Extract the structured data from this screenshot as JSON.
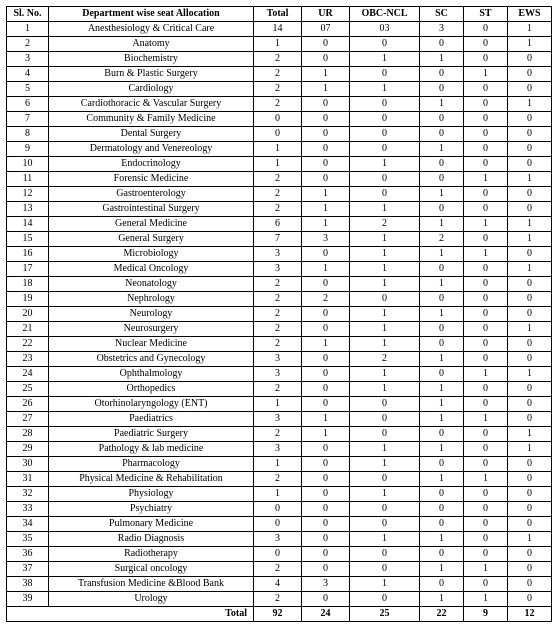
{
  "table": {
    "columns": [
      "Sl. No.",
      "Department wise seat Allocation",
      "Total",
      "UR",
      "OBC-NCL",
      "SC",
      "ST",
      "EWS"
    ],
    "rows": [
      [
        "1",
        "Anesthesiology & Critical Care",
        "14",
        "07",
        "03",
        "3",
        "0",
        "1"
      ],
      [
        "2",
        "Anatomy",
        "1",
        "0",
        "0",
        "0",
        "0",
        "1"
      ],
      [
        "3",
        "Biochemistry",
        "2",
        "0",
        "1",
        "1",
        "0",
        "0"
      ],
      [
        "4",
        "Burn & Plastic Surgery",
        "2",
        "1",
        "0",
        "0",
        "1",
        "0"
      ],
      [
        "5",
        "Cardiology",
        "2",
        "1",
        "1",
        "0",
        "0",
        "0"
      ],
      [
        "6",
        "Cardiothoracic & Vascular Surgery",
        "2",
        "0",
        "0",
        "1",
        "0",
        "1"
      ],
      [
        "7",
        "Community & Family Medicine",
        "0",
        "0",
        "0",
        "0",
        "0",
        "0"
      ],
      [
        "8",
        "Dental Surgery",
        "0",
        "0",
        "0",
        "0",
        "0",
        "0"
      ],
      [
        "9",
        "Dermatology and Venereology",
        "1",
        "0",
        "0",
        "1",
        "0",
        "0"
      ],
      [
        "10",
        "Endocrinology",
        "1",
        "0",
        "1",
        "0",
        "0",
        "0"
      ],
      [
        "11",
        "Forensic Medicine",
        "2",
        "0",
        "0",
        "0",
        "1",
        "1"
      ],
      [
        "12",
        "Gastroenterology",
        "2",
        "1",
        "0",
        "1",
        "0",
        "0"
      ],
      [
        "13",
        "Gastrointestinal Surgery",
        "2",
        "1",
        "1",
        "0",
        "0",
        "0"
      ],
      [
        "14",
        "General Medicine",
        "6",
        "1",
        "2",
        "1",
        "1",
        "1"
      ],
      [
        "15",
        "General Surgery",
        "7",
        "3",
        "1",
        "2",
        "0",
        "1"
      ],
      [
        "16",
        "Microbiology",
        "3",
        "0",
        "1",
        "1",
        "1",
        "0"
      ],
      [
        "17",
        "Medical Oncology",
        "3",
        "1",
        "1",
        "0",
        "0",
        "1"
      ],
      [
        "18",
        "Neonatology",
        "2",
        "0",
        "1",
        "1",
        "0",
        "0"
      ],
      [
        "19",
        "Nephrology",
        "2",
        "2",
        "0",
        "0",
        "0",
        "0"
      ],
      [
        "20",
        "Neurology",
        "2",
        "0",
        "1",
        "1",
        "0",
        "0"
      ],
      [
        "21",
        "Neurosurgery",
        "2",
        "0",
        "1",
        "0",
        "0",
        "1"
      ],
      [
        "22",
        "Nuclear Medicine",
        "2",
        "1",
        "1",
        "0",
        "0",
        "0"
      ],
      [
        "23",
        "Obstetrics and Gynecology",
        "3",
        "0",
        "2",
        "1",
        "0",
        "0"
      ],
      [
        "24",
        "Ophthalmology",
        "3",
        "0",
        "1",
        "0",
        "1",
        "1"
      ],
      [
        "25",
        "Orthopedics",
        "2",
        "0",
        "1",
        "1",
        "0",
        "0"
      ],
      [
        "26",
        "Otorhinolaryngology (ENT)",
        "1",
        "0",
        "0",
        "1",
        "0",
        "0"
      ],
      [
        "27",
        "Paediatrics",
        "3",
        "1",
        "0",
        "1",
        "1",
        "0"
      ],
      [
        "28",
        "Paediatric Surgery",
        "2",
        "1",
        "0",
        "0",
        "0",
        "1"
      ],
      [
        "29",
        "Pathology  & lab medicine",
        "3",
        "0",
        "1",
        "1",
        "0",
        "1"
      ],
      [
        "30",
        "Pharmacology",
        "1",
        "0",
        "1",
        "0",
        "0",
        "0"
      ],
      [
        "31",
        "Physical Medicine & Rehabilitation",
        "2",
        "0",
        "0",
        "1",
        "1",
        "0"
      ],
      [
        "32",
        "Physiology",
        "1",
        "0",
        "1",
        "0",
        "0",
        "0"
      ],
      [
        "33",
        "Psychiatry",
        "0",
        "0",
        "0",
        "0",
        "0",
        "0"
      ],
      [
        "34",
        "Pulmonary Medicine",
        "0",
        "0",
        "0",
        "0",
        "0",
        "0"
      ],
      [
        "35",
        "Radio Diagnosis",
        "3",
        "0",
        "1",
        "1",
        "0",
        "1"
      ],
      [
        "36",
        "Radiotherapy",
        "0",
        "0",
        "0",
        "0",
        "0",
        "0"
      ],
      [
        "37",
        "Surgical oncology",
        "2",
        "0",
        "0",
        "1",
        "1",
        "0"
      ],
      [
        "38",
        "Transfusion Medicine &Blood Bank",
        "4",
        "3",
        "1",
        "0",
        "0",
        "0"
      ],
      [
        "39",
        "Urology",
        "2",
        "0",
        "0",
        "1",
        "1",
        "0"
      ]
    ],
    "total_row": [
      "Total",
      "92",
      "24",
      "25",
      "22",
      "9",
      "12"
    ]
  }
}
